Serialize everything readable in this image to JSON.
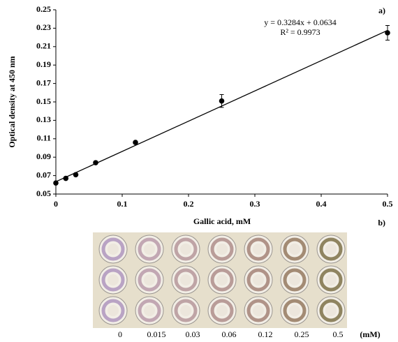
{
  "chart_data": {
    "type": "scatter",
    "panel_labels": [
      "a)",
      "b)"
    ],
    "equation": "y = 0.3284x + 0.0634",
    "r_squared": "R² = 0.9973",
    "xlabel": "Gallic acid, mM",
    "ylabel": "Optical density at 450 nm",
    "xlim": [
      0,
      0.5
    ],
    "ylim": [
      0.05,
      0.25
    ],
    "xticks": [
      0,
      0.1,
      0.2,
      0.3,
      0.4,
      0.5
    ],
    "yticks": [
      0.05,
      0.07,
      0.09,
      0.11,
      0.13,
      0.15,
      0.17,
      0.19,
      0.21,
      0.23,
      0.25
    ],
    "color": "#000000",
    "x": [
      0,
      0.015,
      0.03,
      0.06,
      0.12,
      0.25,
      0.5
    ],
    "values": [
      0.062,
      0.067,
      0.071,
      0.084,
      0.106,
      0.151,
      0.225
    ],
    "errors": [
      0.001,
      0.001,
      0.001,
      0.001,
      0.001,
      0.007,
      0.008
    ],
    "trendline": {
      "x": [
        0,
        0.5
      ],
      "y": [
        0.0634,
        0.2276
      ]
    },
    "well_labels": [
      "0",
      "0.015",
      "0.03",
      "0.06",
      "0.12",
      "0.25",
      "0.5"
    ],
    "well_unit": "(mM)"
  }
}
